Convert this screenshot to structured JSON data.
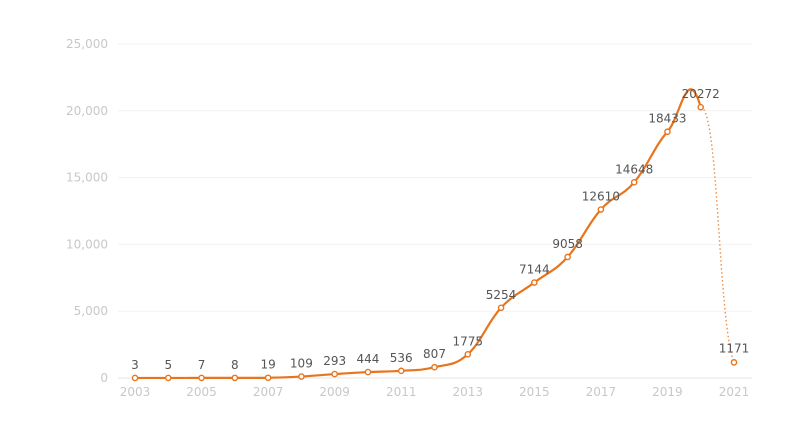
{
  "chart_data": {
    "type": "line",
    "title": "",
    "xlabel": "",
    "ylabel": "",
    "x": [
      2003,
      2004,
      2005,
      2006,
      2007,
      2008,
      2009,
      2010,
      2011,
      2012,
      2013,
      2014,
      2015,
      2016,
      2017,
      2018,
      2019,
      2020,
      2021
    ],
    "series": [
      {
        "name": "count",
        "color": "#e8741e",
        "values": [
          3,
          5,
          7,
          8,
          19,
          109,
          293,
          444,
          536,
          807,
          1775,
          5254,
          7144,
          9058,
          12610,
          14648,
          18433,
          20272,
          1171
        ],
        "dotted_last_segment": true
      }
    ],
    "data_labels": [
      "3",
      "5",
      "7",
      "8",
      "19",
      "109",
      "293",
      "444",
      "536",
      "807",
      "1775",
      "5254",
      "7144",
      "9058",
      "12610",
      "14648",
      "18433",
      "20272",
      "1171"
    ],
    "ylim": [
      0,
      25000
    ],
    "yticks": [
      0,
      5000,
      10000,
      15000,
      20000,
      25000
    ],
    "ytick_labels": [
      "0",
      "5,000",
      "10,000",
      "15,000",
      "20,000",
      "25,000"
    ],
    "xtick_labels": [
      "2003",
      "2005",
      "2007",
      "2009",
      "2011",
      "2013",
      "2015",
      "2017",
      "2019",
      "2021"
    ],
    "xtick_values": [
      2003,
      2005,
      2007,
      2009,
      2011,
      2013,
      2015,
      2017,
      2019,
      2021
    ],
    "grid": true,
    "legend": "none"
  }
}
